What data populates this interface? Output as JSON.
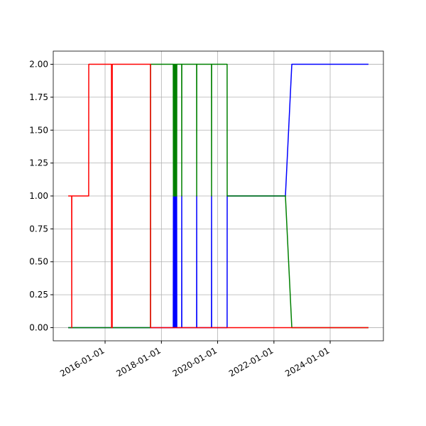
{
  "chart_data": {
    "type": "line",
    "x": [
      "2014-09-09",
      "2014-10-24",
      "2014-10-25",
      "2014-10-26",
      "2015-06-02",
      "2015-06-03",
      "2016-03-24",
      "2016-03-25",
      "2016-04-02",
      "2016-04-03",
      "2017-08-12",
      "2017-08-13",
      "2018-06-04",
      "2018-06-06",
      "2018-06-08",
      "2018-06-10",
      "2018-06-12",
      "2018-06-14",
      "2018-06-16",
      "2018-06-18",
      "2018-06-20",
      "2018-06-22",
      "2018-06-24",
      "2018-06-26",
      "2018-06-28",
      "2018-07-02",
      "2018-07-06",
      "2018-07-10",
      "2018-07-14",
      "2018-07-18",
      "2018-07-20",
      "2018-09-21",
      "2018-09-22",
      "2018-09-23",
      "2019-04-03",
      "2019-04-04",
      "2019-04-05",
      "2019-10-13",
      "2019-10-14",
      "2019-10-15",
      "2020-05-03",
      "2020-05-04",
      "2022-05-30",
      "2022-08-21",
      "2025-05-12"
    ],
    "series": [
      {
        "color": "#0000ff",
        "values": [
          0,
          0,
          0,
          0,
          0,
          0,
          0,
          0,
          0,
          0,
          0,
          0,
          0,
          1,
          0,
          1,
          0,
          1,
          0,
          1,
          0,
          1,
          0,
          1,
          0,
          1,
          0,
          1,
          0,
          1,
          0,
          0,
          1,
          0,
          0,
          1,
          0,
          0,
          1,
          0,
          0,
          1,
          1,
          2,
          2
        ]
      },
      {
        "color": "#008000",
        "values": [
          0,
          0,
          0,
          0,
          0,
          0,
          0,
          0,
          0,
          0,
          0,
          2,
          2,
          1,
          2,
          1,
          2,
          1,
          2,
          1,
          2,
          1,
          2,
          1,
          2,
          1,
          2,
          1,
          2,
          1,
          2,
          2,
          1,
          2,
          2,
          1,
          2,
          2,
          1,
          2,
          2,
          1,
          1,
          0,
          0
        ]
      },
      {
        "color": "#ff0000",
        "values": [
          1,
          1,
          0,
          1,
          1,
          2,
          2,
          0,
          0,
          2,
          2,
          0,
          0,
          0,
          0,
          0,
          0,
          0,
          0,
          0,
          0,
          0,
          0,
          0,
          0,
          0,
          0,
          0,
          0,
          0,
          0,
          0,
          0,
          0,
          0,
          0,
          0,
          0,
          0,
          0,
          0,
          0,
          0,
          0,
          0
        ]
      }
    ],
    "xlim": [
      "2014-02-27",
      "2025-11-22"
    ],
    "xticks": [
      "2016-01-01",
      "2018-01-01",
      "2020-01-01",
      "2022-01-01",
      "2024-01-01"
    ],
    "ylim": [
      -0.1,
      2.1
    ],
    "yticks": [
      {
        "value": 0,
        "label": "0.00"
      },
      {
        "value": 0.25,
        "label": "0.25"
      },
      {
        "value": 0.5,
        "label": "0.50"
      },
      {
        "value": 0.75,
        "label": "0.75"
      },
      {
        "value": 1,
        "label": "1.00"
      },
      {
        "value": 1.25,
        "label": "1.25"
      },
      {
        "value": 1.5,
        "label": "1.50"
      },
      {
        "value": 1.75,
        "label": "1.75"
      },
      {
        "value": 2,
        "label": "2.00"
      }
    ],
    "grid": true
  }
}
